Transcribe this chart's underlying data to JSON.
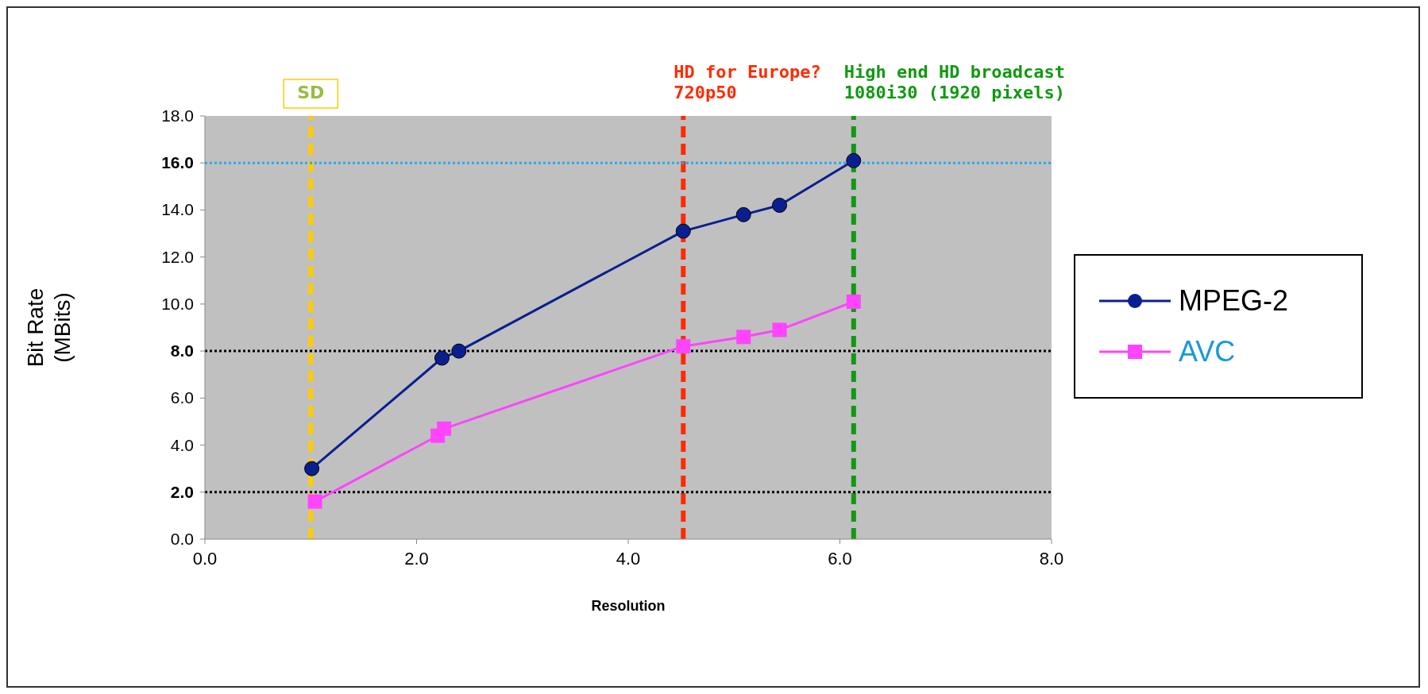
{
  "chart_data": {
    "type": "line",
    "xlabel": "Resolution",
    "ylabel": "Bit Rate\n(MBits)",
    "series": [
      {
        "name": "MPEG-2",
        "color": "#0a1f8f",
        "marker": "circle",
        "x": [
          1.01,
          2.24,
          2.4,
          4.52,
          5.09,
          5.43,
          6.13
        ],
        "values": [
          3.0,
          7.7,
          8.0,
          13.1,
          13.8,
          14.2,
          16.1
        ]
      },
      {
        "name": "AVC",
        "color": "#ff44ff",
        "marker": "square",
        "x": [
          1.04,
          2.2,
          2.26,
          4.52,
          5.09,
          5.43,
          6.13
        ],
        "values": [
          1.6,
          4.4,
          4.7,
          8.2,
          8.6,
          8.9,
          10.1
        ]
      }
    ],
    "xlim": [
      0,
      8
    ],
    "xticks": [
      {
        "value": 0,
        "label": "0.0"
      },
      {
        "value": 2,
        "label": "2.0"
      },
      {
        "value": 4,
        "label": "4.0"
      },
      {
        "value": 6,
        "label": "6.0"
      },
      {
        "value": 8,
        "label": "8.0"
      }
    ],
    "ylim": [
      0,
      18
    ],
    "yticks": [
      {
        "value": 0,
        "label": "0.0"
      },
      {
        "value": 2,
        "label": "2.0"
      },
      {
        "value": 4,
        "label": "4.0"
      },
      {
        "value": 6,
        "label": "6.0"
      },
      {
        "value": 8,
        "label": "8.0"
      },
      {
        "value": 10,
        "label": "10.0"
      },
      {
        "value": 12,
        "label": "12.0"
      },
      {
        "value": 14,
        "label": "14.0"
      },
      {
        "value": 16,
        "label": "16.0"
      },
      {
        "value": 18,
        "label": "18.0"
      }
    ],
    "ref_lines": [
      {
        "axis": "x",
        "value": 1.0,
        "label": "SD",
        "color": "#ffcc00",
        "line_style": "dashed"
      },
      {
        "axis": "x",
        "value": 4.52,
        "label": "HD for Europe?\n720p50",
        "color": "#ff2a00",
        "line_style": "dashed"
      },
      {
        "axis": "x",
        "value": 6.13,
        "label": "High end HD broadcast\n1080i30 (1920 pixels)",
        "color": "#119911",
        "line_style": "dashed"
      },
      {
        "axis": "y",
        "value": 16,
        "color": "#22aaee",
        "line_style": "dotted"
      },
      {
        "axis": "y",
        "value": 8,
        "color": "#000000",
        "line_style": "dotted"
      },
      {
        "axis": "y",
        "value": 2,
        "color": "#000000",
        "line_style": "dotted"
      }
    ],
    "grid": false,
    "legend": "right",
    "line_style": "solid"
  }
}
